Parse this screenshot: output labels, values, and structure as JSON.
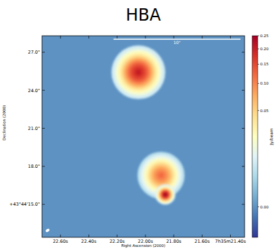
{
  "chart_data": {
    "type": "image",
    "title": "HBA",
    "x_label": "Right Ascension (2000)",
    "y_label": "Declination (2000)",
    "xlim": [
      22.73,
      21.3
    ],
    "xticks": [
      {
        "value": 22.6,
        "label": "22.60s"
      },
      {
        "value": 22.4,
        "label": "22.40s"
      },
      {
        "value": 22.2,
        "label": "22.20s"
      },
      {
        "value": 22.0,
        "label": "22.00s"
      },
      {
        "value": 21.8,
        "label": "21.80s"
      },
      {
        "value": 21.6,
        "label": "21.60s"
      },
      {
        "value": 21.4,
        "label": "7h35m21.40s"
      }
    ],
    "ylim": [
      12.4,
      28.3
    ],
    "yticks": [
      {
        "value": 27,
        "label": "27.0\""
      },
      {
        "value": 24,
        "label": "24.0\""
      },
      {
        "value": 21,
        "label": "21.0\""
      },
      {
        "value": 18,
        "label": "18.0\""
      },
      {
        "value": 15,
        "label": "+43°44'15.0\""
      }
    ],
    "sources": [
      {
        "ra": 22.05,
        "dec": 25.42,
        "peak": 0.2,
        "size": 0.8
      },
      {
        "ra": 21.89,
        "dec": 17.29,
        "peak": 0.12,
        "size": 0.7
      },
      {
        "ra": 21.86,
        "dec": 15.77,
        "peak": 0.25,
        "size": 0.3
      }
    ],
    "colorbar": {
      "label": "Jy/beam",
      "range": [
        -0.002,
        0.25
      ],
      "ticks": [
        0.25,
        {
          "value": 0.2,
          "label": "0.20"
        },
        0.15,
        {
          "value": 0.1,
          "label": "0.10"
        },
        0.05,
        {
          "value": 0,
          "label": "0.00"
        }
      ]
    },
    "scalebar": {
      "length": 10,
      "label": "10\""
    }
  }
}
